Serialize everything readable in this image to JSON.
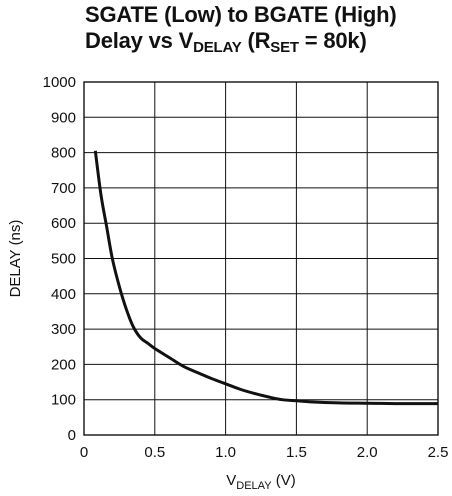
{
  "chart_data": {
    "type": "line",
    "title": {
      "line1": "SGATE (Low) to BGATE (High)",
      "line2_prefix": "Delay vs V",
      "line2_sub": "DELAY",
      "line2_mid": " (R",
      "line2_sub2": "SET",
      "line2_suffix": " = 80k)"
    },
    "xlabel": {
      "prefix": "V",
      "sub": "DELAY",
      "suffix": " (V)"
    },
    "ylabel": "DELAY (ns)",
    "xlim": [
      0,
      2.5
    ],
    "ylim": [
      0,
      1000
    ],
    "x_ticks": [
      0,
      0.5,
      1.0,
      1.5,
      2.0,
      2.5
    ],
    "x_tick_labels": [
      "0",
      "0.5",
      "1.0",
      "1.5",
      "2.0",
      "2.5"
    ],
    "y_ticks": [
      0,
      100,
      200,
      300,
      400,
      500,
      600,
      700,
      800,
      900,
      1000
    ],
    "y_tick_labels": [
      "0",
      "100",
      "200",
      "300",
      "400",
      "500",
      "600",
      "700",
      "800",
      "900",
      "1000"
    ],
    "grid": true,
    "series": [
      {
        "color": "#111111",
        "x": [
          0.08,
          0.12,
          0.16,
          0.2,
          0.25,
          0.3,
          0.35,
          0.4,
          0.45,
          0.5,
          0.6,
          0.7,
          0.8,
          0.9,
          1.0,
          1.1,
          1.2,
          1.3,
          1.4,
          1.5,
          1.6,
          1.8,
          2.0,
          2.2,
          2.5
        ],
        "y": [
          805,
          680,
          590,
          500,
          420,
          355,
          305,
          275,
          260,
          245,
          220,
          195,
          177,
          160,
          145,
          130,
          118,
          108,
          100,
          97,
          94,
          91,
          90,
          89,
          89
        ]
      }
    ]
  }
}
